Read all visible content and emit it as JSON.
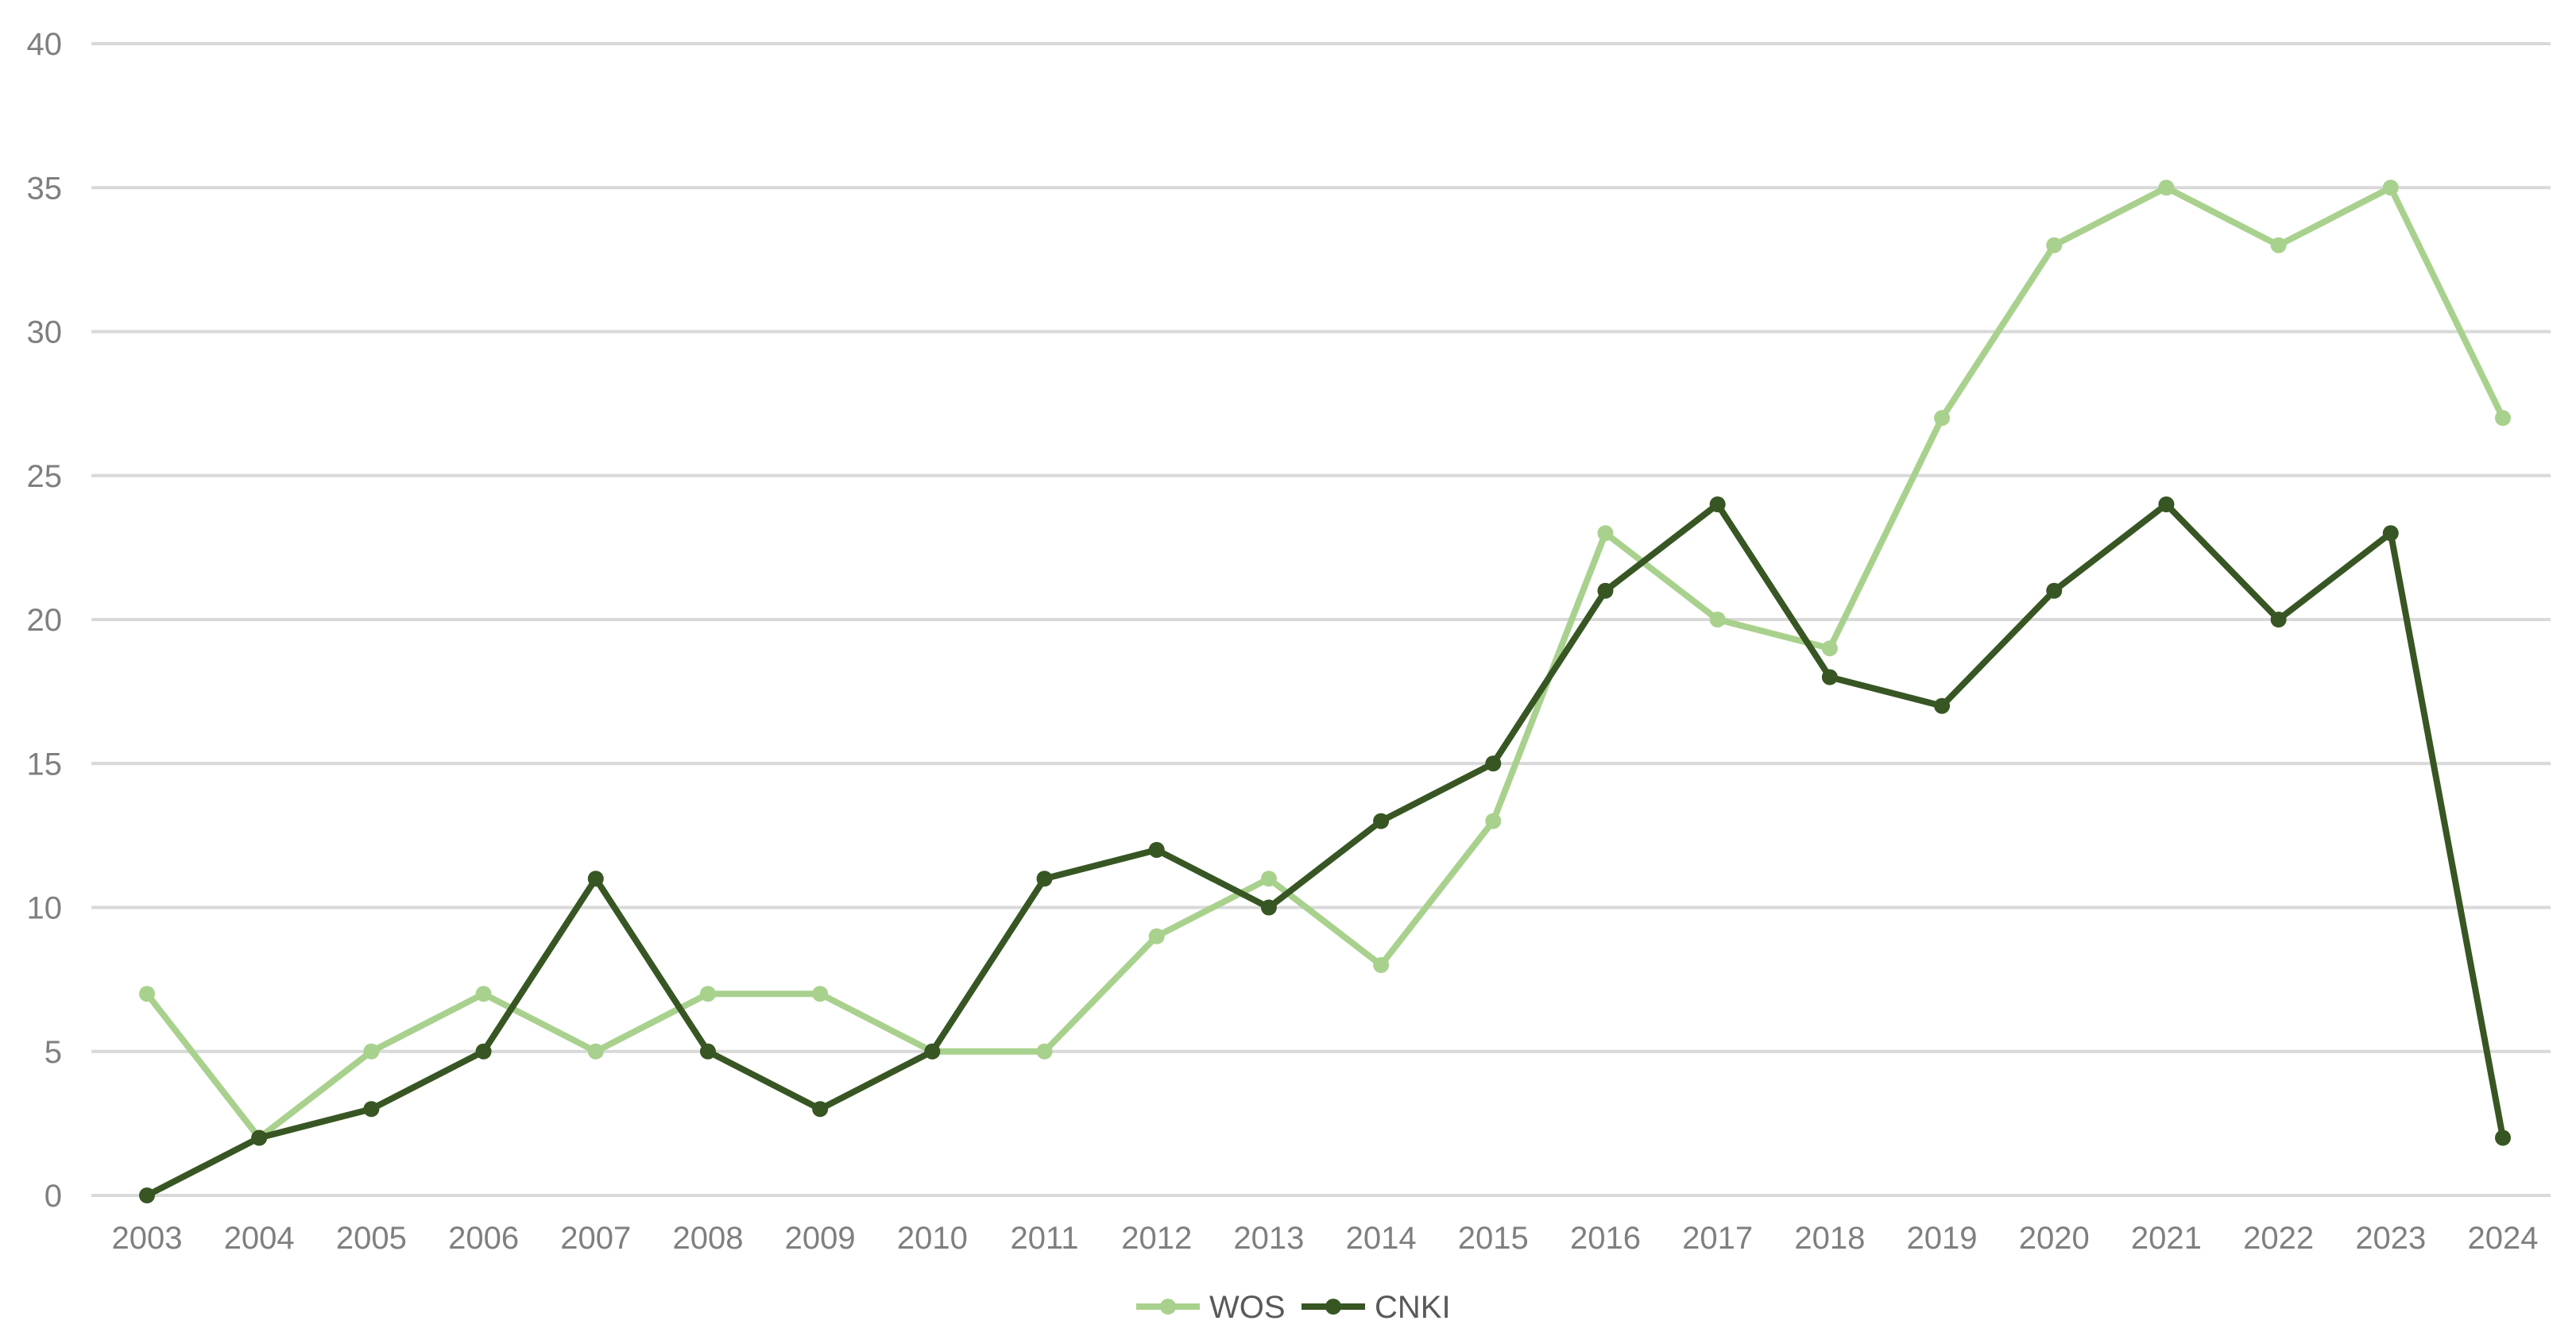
{
  "chart_data": {
    "type": "line",
    "title": "",
    "xlabel": "",
    "ylabel": "",
    "ylim": [
      0,
      40
    ],
    "yticks": [
      0,
      5,
      10,
      15,
      20,
      25,
      30,
      35,
      40
    ],
    "grid": true,
    "legend_position": "bottom",
    "categories": [
      "2003",
      "2004",
      "2005",
      "2006",
      "2007",
      "2008",
      "2009",
      "2010",
      "2011",
      "2012",
      "2013",
      "2014",
      "2015",
      "2016",
      "2017",
      "2018",
      "2019",
      "2020",
      "2021",
      "2022",
      "2023",
      "2024"
    ],
    "series": [
      {
        "name": "WOS",
        "color": "#a9d18e",
        "values": [
          7,
          2,
          5,
          7,
          5,
          7,
          7,
          5,
          5,
          9,
          11,
          8,
          13,
          23,
          20,
          19,
          27,
          33,
          35,
          33,
          35,
          27
        ]
      },
      {
        "name": "CNKI",
        "color": "#375623",
        "values": [
          0,
          2,
          3,
          5,
          11,
          5,
          3,
          5,
          11,
          12,
          10,
          13,
          15,
          21,
          24,
          18,
          17,
          21,
          24,
          20,
          23,
          2
        ]
      }
    ]
  }
}
